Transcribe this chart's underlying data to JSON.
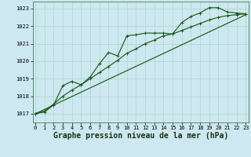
{
  "title": "Graphe pression niveau de la mer (hPa)",
  "bg_color": "#cde8f0",
  "grid_color": "#b0d4c8",
  "line_color": "#1a5c1a",
  "x_ticks": [
    0,
    1,
    2,
    3,
    4,
    5,
    6,
    7,
    8,
    9,
    10,
    11,
    12,
    13,
    14,
    15,
    16,
    17,
    18,
    19,
    20,
    21,
    22,
    23
  ],
  "y_ticks": [
    1017,
    1018,
    1019,
    1020,
    1021,
    1022,
    1023
  ],
  "ylim": [
    1016.5,
    1023.4
  ],
  "xlim": [
    -0.3,
    23.3
  ],
  "zigzag_y": [
    1017.0,
    1017.1,
    1017.5,
    1018.6,
    1018.85,
    1018.65,
    1019.1,
    1019.85,
    1020.5,
    1020.3,
    1021.45,
    1021.5,
    1021.6,
    1021.6,
    1021.6,
    1021.55,
    1022.2,
    1022.55,
    1022.75,
    1023.05,
    1023.05,
    1022.8,
    1022.75,
    1022.7
  ],
  "smooth_y": [
    1017.0,
    1017.15,
    1017.55,
    1018.0,
    1018.35,
    1018.65,
    1019.0,
    1019.35,
    1019.7,
    1020.05,
    1020.45,
    1020.7,
    1021.0,
    1021.2,
    1021.45,
    1021.55,
    1021.75,
    1021.95,
    1022.15,
    1022.35,
    1022.5,
    1022.6,
    1022.65,
    1022.7
  ],
  "trend_x": [
    0,
    23
  ],
  "trend_y": [
    1017.0,
    1022.65
  ],
  "marker_size": 2.5,
  "linewidth": 0.85,
  "tick_fontsize": 5.0,
  "label_fontsize": 7.0
}
